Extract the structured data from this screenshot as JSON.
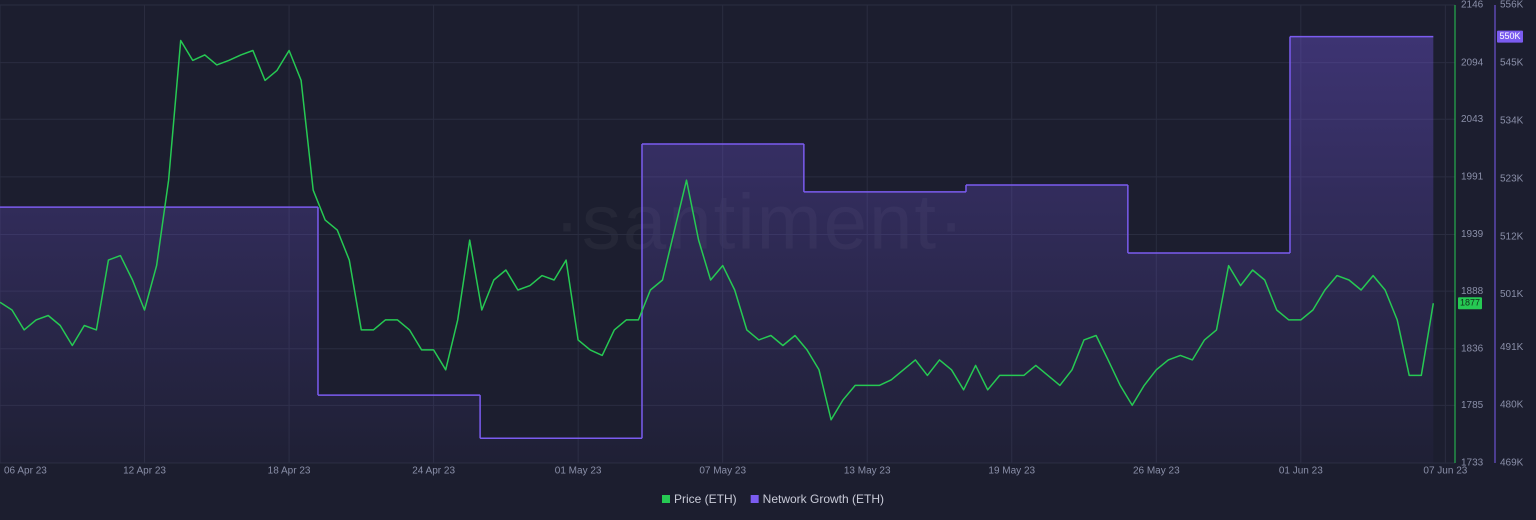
{
  "chart_data": {
    "type": "line",
    "watermark": "·santiment·",
    "xlim": [
      0,
      60.4
    ],
    "xticks": [
      {
        "value": 0,
        "label": "06 Apr 23"
      },
      {
        "value": 6,
        "label": "12 Apr 23"
      },
      {
        "value": 12,
        "label": "18 Apr 23"
      },
      {
        "value": 18,
        "label": "24 Apr 23"
      },
      {
        "value": 24,
        "label": "01 May 23"
      },
      {
        "value": 30,
        "label": "07 May 23"
      },
      {
        "value": 36,
        "label": "13 May 23"
      },
      {
        "value": 42,
        "label": "19 May 23"
      },
      {
        "value": 48,
        "label": "26 May 23"
      },
      {
        "value": 54,
        "label": "01 Jun 23"
      },
      {
        "value": 60,
        "label": "07 Jun 23"
      }
    ],
    "ylim": [
      1733,
      2146
    ],
    "yticks": [
      1733,
      1785,
      1836,
      1888,
      1939,
      1991,
      2043,
      2094,
      2146
    ],
    "y2lim": [
      469000,
      556000
    ],
    "y2ticks": [
      {
        "value": 469000,
        "label": "469K"
      },
      {
        "value": 480000,
        "label": "480K"
      },
      {
        "value": 491000,
        "label": "491K"
      },
      {
        "value": 501000,
        "label": "501K"
      },
      {
        "value": 512000,
        "label": "512K"
      },
      {
        "value": 523000,
        "label": "523K"
      },
      {
        "value": 534000,
        "label": "534K"
      },
      {
        "value": 545000,
        "label": "545K"
      },
      {
        "value": 556000,
        "label": "556K"
      }
    ],
    "grid": true,
    "legend": "bottom",
    "series": [
      {
        "name": "Price (ETH)",
        "color": "#26c953",
        "last_value_label": "1877",
        "x": [
          0,
          0.5,
          1,
          1.5,
          2,
          2.5,
          3,
          3.5,
          4,
          4.5,
          5,
          5.5,
          6,
          6.5,
          7,
          7.5,
          8,
          8.5,
          9,
          9.5,
          10,
          10.5,
          11,
          11.5,
          12,
          12.5,
          13,
          13.5,
          14,
          14.5,
          15,
          15.5,
          16,
          16.5,
          17,
          17.5,
          18,
          18.5,
          19,
          19.5,
          20,
          20.5,
          21,
          21.5,
          22,
          22.5,
          23,
          23.5,
          24,
          24.5,
          25,
          25.5,
          26,
          26.5,
          27,
          27.5,
          28,
          28.5,
          29,
          29.5,
          30,
          30.5,
          31,
          31.5,
          32,
          32.5,
          33,
          33.5,
          34,
          34.5,
          35,
          35.5,
          36,
          36.5,
          37,
          37.5,
          38,
          38.5,
          39,
          39.5,
          40,
          40.5,
          41,
          41.5,
          42,
          42.5,
          43,
          43.5,
          44,
          44.5,
          45,
          45.5,
          46,
          46.5,
          47,
          47.5,
          48,
          48.5,
          49,
          49.5,
          50,
          50.5,
          51,
          51.5,
          52,
          52.5,
          53,
          53.5,
          54,
          54.5,
          55,
          55.5,
          56,
          56.5,
          57,
          57.5,
          58,
          58.5,
          59,
          59.5
        ],
        "values": [
          1878,
          1871,
          1853,
          1862,
          1866,
          1857,
          1839,
          1857,
          1853,
          1916,
          1920,
          1898,
          1871,
          1911,
          1988,
          2114,
          2096,
          2101,
          2092,
          2096,
          2101,
          2105,
          2078,
          2087,
          2105,
          2078,
          1979,
          1952,
          1943,
          1916,
          1853,
          1853,
          1862,
          1862,
          1853,
          1835,
          1835,
          1817,
          1862,
          1934,
          1871,
          1898,
          1907,
          1889,
          1893,
          1902,
          1898,
          1916,
          1844,
          1835,
          1830,
          1853,
          1862,
          1862,
          1889,
          1898,
          1943,
          1988,
          1934,
          1898,
          1911,
          1889,
          1853,
          1844,
          1848,
          1839,
          1848,
          1835,
          1817,
          1772,
          1790,
          1803,
          1803,
          1803,
          1808,
          1817,
          1826,
          1812,
          1826,
          1817,
          1799,
          1821,
          1799,
          1812,
          1812,
          1812,
          1821,
          1812,
          1803,
          1817,
          1844,
          1848,
          1826,
          1803,
          1785,
          1803,
          1817,
          1826,
          1830,
          1826,
          1844,
          1853,
          1911,
          1893,
          1907,
          1898,
          1871,
          1862,
          1862,
          1871,
          1889,
          1902,
          1898,
          1889,
          1902,
          1889,
          1862,
          1812,
          1812,
          1877
        ]
      },
      {
        "name": "Network Growth (ETH)",
        "color": "#7b5cf0",
        "axis": "y2",
        "step": true,
        "last_value_label": "550K",
        "x": [
          0,
          13.2,
          19.93,
          26.65,
          33.37,
          40.1,
          46.82,
          53.55
        ],
        "values": [
          517600,
          481900,
          473700,
          529600,
          520500,
          521800,
          508900,
          550000
        ]
      }
    ]
  }
}
